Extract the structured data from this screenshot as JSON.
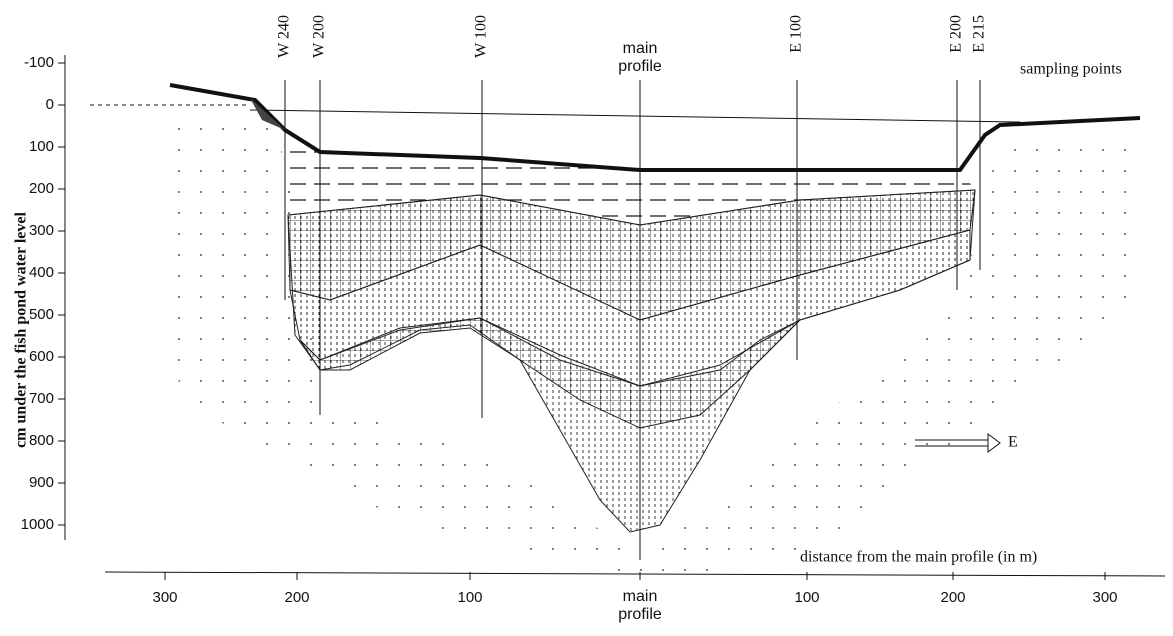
{
  "y_axis": {
    "label": "cm under the fish pond water level",
    "ticks": [
      -100,
      0,
      100,
      200,
      300,
      400,
      500,
      600,
      700,
      800,
      900,
      1000
    ]
  },
  "x_axis": {
    "label": "distance from the main profile (in m)",
    "ticks": [
      "300",
      "200",
      "100",
      "main profile",
      "100",
      "200",
      "300"
    ]
  },
  "sampling_points": {
    "label": "sampling points",
    "points": [
      "W 240",
      "W 200",
      "W 100",
      "main profile",
      "E 100",
      "E 200",
      "E 215"
    ]
  },
  "direction": "E"
}
